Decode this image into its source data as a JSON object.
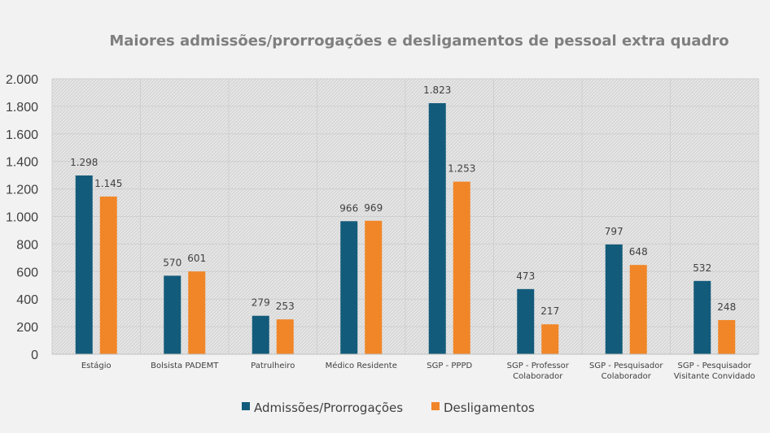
{
  "chart_data": {
    "type": "bar",
    "title": "Maiores admissões/prorrogações e desligamentos de pessoal extra quadro",
    "xlabel": "",
    "ylabel": "",
    "categories": [
      [
        "Estágio"
      ],
      [
        "Bolsista PADEMT"
      ],
      [
        "Patrulheiro"
      ],
      [
        "Médico Residente"
      ],
      [
        "SGP - PPPD"
      ],
      [
        "SGP - Professor",
        "Colaborador"
      ],
      [
        "SGP - Pesquisador",
        "Colaborador"
      ],
      [
        "SGP - Pesquisador",
        "Visitante Convidado"
      ]
    ],
    "series": [
      {
        "name": "Admissões/Prorrogações",
        "color": "#135b7a",
        "values": [
          1298,
          570,
          279,
          966,
          1823,
          473,
          797,
          532
        ],
        "labels": [
          "1.298",
          "570",
          "279",
          "966",
          "1.823",
          "473",
          "797",
          "532"
        ]
      },
      {
        "name": "Desligamentos",
        "color": "#f18628",
        "values": [
          1145,
          601,
          253,
          969,
          1253,
          217,
          648,
          248
        ],
        "labels": [
          "1.145",
          "601",
          "253",
          "969",
          "1.253",
          "217",
          "648",
          "248"
        ]
      }
    ],
    "ylim": [
      0,
      2000
    ],
    "yticks": [
      0,
      200,
      400,
      600,
      800,
      1000,
      1200,
      1400,
      1600,
      1800,
      2000
    ],
    "ytick_labels": [
      "0",
      "200",
      "400",
      "600",
      "800",
      "1.000",
      "1.200",
      "1.400",
      "1.600",
      "1.800",
      "2.000"
    ],
    "grid": true,
    "legend_position": "bottom"
  }
}
